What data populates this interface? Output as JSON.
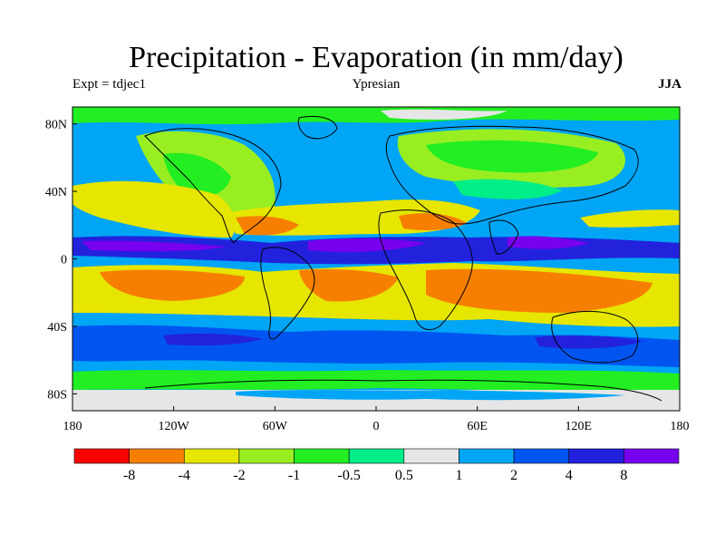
{
  "title": "Precipitation - Evaporation (in mm/day)",
  "subtitle_left": "Expt = tdjec1",
  "subtitle_center": "Ypresian",
  "subtitle_right": "JJA",
  "lat_ticks": [
    {
      "value": 80,
      "label": "80N"
    },
    {
      "value": 40,
      "label": "40N"
    },
    {
      "value": 0,
      "label": "0"
    },
    {
      "value": -40,
      "label": "40S"
    },
    {
      "value": -80,
      "label": "80S"
    }
  ],
  "lon_ticks": [
    {
      "value": -180,
      "label": "180"
    },
    {
      "value": -120,
      "label": "120W"
    },
    {
      "value": -60,
      "label": "60W"
    },
    {
      "value": 0,
      "label": "0"
    },
    {
      "value": 60,
      "label": "60E"
    },
    {
      "value": 120,
      "label": "120E"
    },
    {
      "value": 180,
      "label": "180"
    }
  ],
  "colorbar": {
    "colors": [
      "#ff0000",
      "#f77f00",
      "#e6e600",
      "#99ee22",
      "#22ee22",
      "#00ee88",
      "#e6e6e6",
      "#00a5f5",
      "#0055f0",
      "#2222dd",
      "#7700ee"
    ],
    "labels": [
      "-8",
      "-4",
      "-2",
      "-1",
      "-0.5",
      "0.5",
      "1",
      "2",
      "4",
      "8"
    ]
  },
  "colors": {
    "background_field": "#00a5f5",
    "coastline": "#000000"
  }
}
